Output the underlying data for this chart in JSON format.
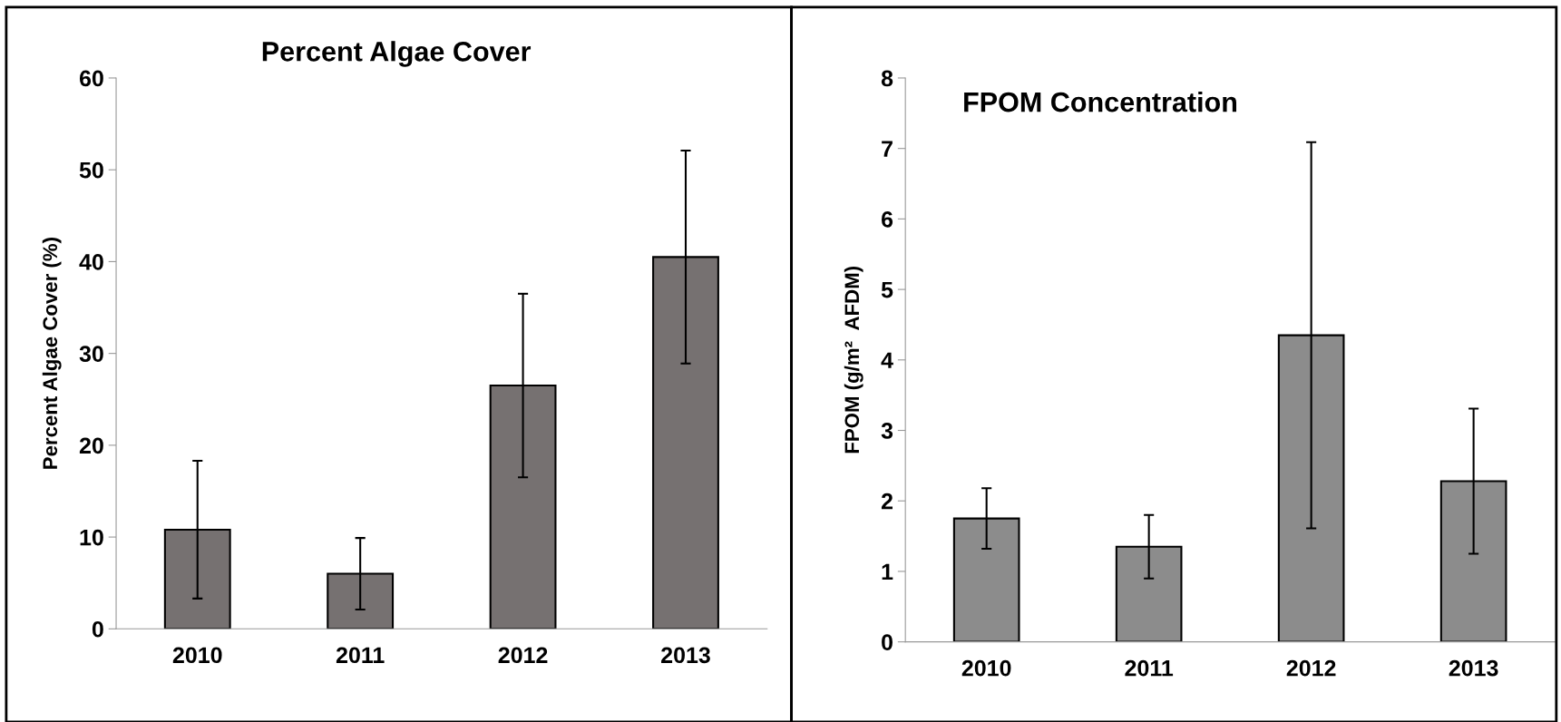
{
  "chart_data": [
    {
      "type": "bar",
      "title": "Percent Algae Cover",
      "ylabel": "Percent Algae Cover (%)",
      "categories": [
        "2010",
        "2011",
        "2012",
        "2013"
      ],
      "values": [
        10.8,
        6.0,
        26.5,
        40.5
      ],
      "errors": [
        7.5,
        3.9,
        10.0,
        11.6
      ],
      "color": "#767171",
      "ylim": [
        0,
        60
      ],
      "yticks": [
        0,
        10,
        20,
        30,
        40,
        50,
        60
      ],
      "grid": false,
      "legend": false
    },
    {
      "type": "bar",
      "title": "FPOM Concentration",
      "ylabel": "FPOM (g/m²  AFDM)",
      "categories": [
        "2010",
        "2011",
        "2012",
        "2013"
      ],
      "values": [
        1.75,
        1.35,
        4.35,
        2.28
      ],
      "errors": [
        0.43,
        0.45,
        2.74,
        1.03
      ],
      "color": "#8c8c8c",
      "ylim": [
        0,
        8
      ],
      "yticks": [
        0,
        1,
        2,
        3,
        4,
        5,
        6,
        7,
        8
      ],
      "grid": false,
      "legend": false
    }
  ]
}
